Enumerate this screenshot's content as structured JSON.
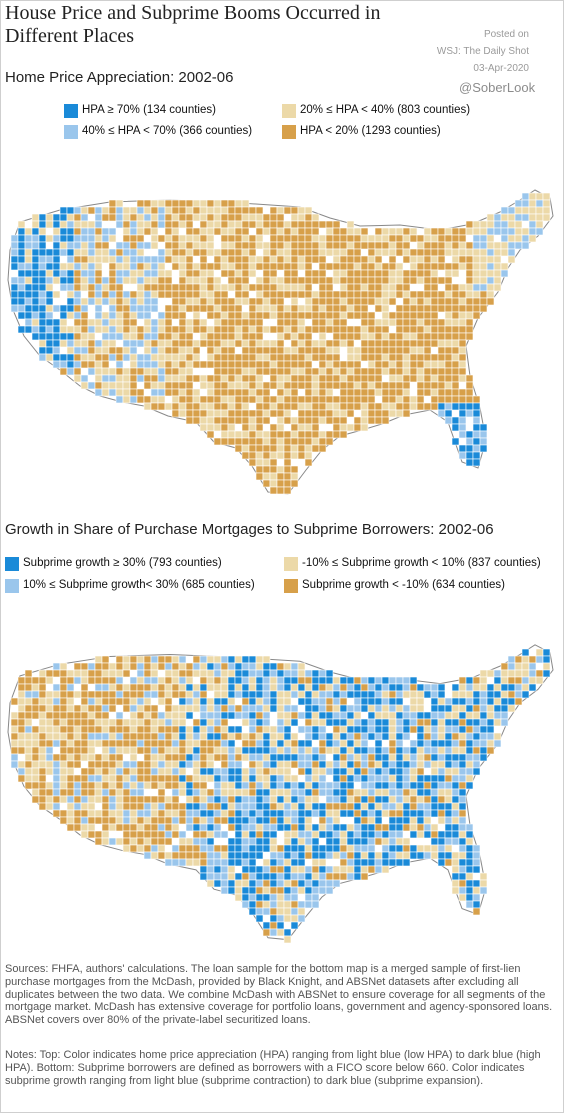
{
  "title": "House Price and Subprime Booms Occurred in Different Places",
  "posted": {
    "label": "Posted on",
    "source": "WSJ: The Daily Shot",
    "date": "03-Apr-2020"
  },
  "handle": "@SoberLook",
  "maps": [
    {
      "subtitle": "Home Price Appreciation: 2002-06",
      "legend": [
        {
          "label": "HPA ≥ 70% (134 counties)",
          "color": "#1a8ad8"
        },
        {
          "label": "20% ≤ HPA < 40% (803 counties)",
          "color": "#ecd9a8"
        },
        {
          "label": "40% ≤ HPA < 70% (366 counties)",
          "color": "#9ac6ec"
        },
        {
          "label": "HPA < 20% (1293 counties)",
          "color": "#d7a04a"
        }
      ]
    },
    {
      "subtitle": "Growth in Share of Purchase Mortgages to Subprime Borrowers: 2002-06",
      "legend": [
        {
          "label": "Subprime growth ≥ 30% (793 counties)",
          "color": "#1a8ad8"
        },
        {
          "label": "-10% ≤ Subprime growth < 10% (837 counties)",
          "color": "#ecd9a8"
        },
        {
          "label": "10% ≤ Subprime growth< 30% (685 counties)",
          "color": "#9ac6ec"
        },
        {
          "label": "Subprime growth < -10% (634 counties)",
          "color": "#d7a04a"
        }
      ]
    }
  ],
  "sources": "Sources: FHFA, authors' calculations. The loan sample for the bottom map is a merged sample of first-lien purchase mortgages from the McDash, provided by Black Knight, and ABSNet datasets after excluding all duplicates between the two data. We combine McDash with ABSNet to ensure coverage for all segments of the mortgage market. McDash has extensive coverage for portfolio loans, government and agency-sponsored loans. ABSNet covers over 80% of the private-label securitized loans.",
  "notes": "Notes: Top: Color indicates home price appreciation (HPA) ranging from light blue (low HPA) to dark blue (high HPA). Bottom: Subprime borrowers are defined as borrowers with a FICO score below 660. Color indicates subprime growth ranging from light blue (subprime contraction) to dark blue (subprime expansion)."
}
